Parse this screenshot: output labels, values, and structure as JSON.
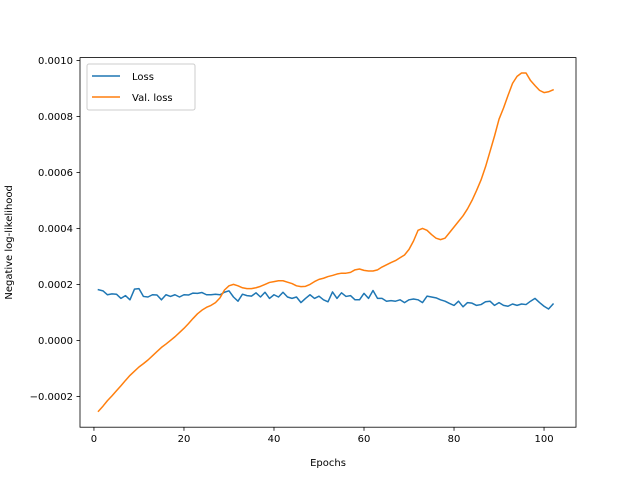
{
  "chart_data": {
    "type": "line",
    "title": "",
    "xlabel": "Epochs",
    "ylabel": "Negative log-likelihood",
    "xlim": [
      -3.1,
      107.1
    ],
    "ylim": [
      -0.00031,
      0.00101
    ],
    "x_ticks": [
      0,
      20,
      40,
      60,
      80,
      100
    ],
    "x_tick_labels": [
      "0",
      "20",
      "40",
      "60",
      "80",
      "100"
    ],
    "y_ticks": [
      -0.0002,
      0.0,
      0.0002,
      0.0004,
      0.0006,
      0.0008,
      0.001
    ],
    "y_tick_labels": [
      "−0.0002",
      "0.0000",
      "0.0002",
      "0.0004",
      "0.0006",
      "0.0008",
      "0.0010"
    ],
    "grid": false,
    "legend_position": "upper-left",
    "x": [
      1,
      2,
      3,
      4,
      5,
      6,
      7,
      8,
      9,
      10,
      11,
      12,
      13,
      14,
      15,
      16,
      17,
      18,
      19,
      20,
      21,
      22,
      23,
      24,
      25,
      26,
      27,
      28,
      29,
      30,
      31,
      32,
      33,
      34,
      35,
      36,
      37,
      38,
      39,
      40,
      41,
      42,
      43,
      44,
      45,
      46,
      47,
      48,
      49,
      50,
      51,
      52,
      53,
      54,
      55,
      56,
      57,
      58,
      59,
      60,
      61,
      62,
      63,
      64,
      65,
      66,
      67,
      68,
      69,
      70,
      71,
      72,
      73,
      74,
      75,
      76,
      77,
      78,
      79,
      80,
      81,
      82,
      83,
      84,
      85,
      86,
      87,
      88,
      89,
      90,
      91,
      92,
      93,
      94,
      95,
      96,
      97,
      98,
      99,
      100,
      101,
      102
    ],
    "series": [
      {
        "name": "Loss",
        "color": "#1f77b4",
        "values": [
          0.000181,
          0.000177,
          0.000163,
          0.000166,
          0.000165,
          0.00015,
          0.00016,
          0.000145,
          0.000183,
          0.000185,
          0.000157,
          0.000155,
          0.000163,
          0.000162,
          0.000145,
          0.000163,
          0.000157,
          0.000163,
          0.000155,
          0.000163,
          0.000162,
          0.000169,
          0.000168,
          0.000171,
          0.000163,
          0.000163,
          0.000165,
          0.000163,
          0.000172,
          0.000177,
          0.000155,
          0.00014,
          0.000165,
          0.00016,
          0.000158,
          0.00017,
          0.000155,
          0.000172,
          0.00015,
          0.000163,
          0.000155,
          0.000172,
          0.000155,
          0.00015,
          0.000155,
          0.000135,
          0.00015,
          0.000163,
          0.00015,
          0.000158,
          0.000145,
          0.000138,
          0.000173,
          0.00015,
          0.00017,
          0.000157,
          0.00016,
          0.000145,
          0.000145,
          0.000168,
          0.00015,
          0.000178,
          0.00015,
          0.00015,
          0.00014,
          0.000142,
          0.00014,
          0.000145,
          0.000135,
          0.000145,
          0.000148,
          0.000145,
          0.000135,
          0.000158,
          0.000155,
          0.000152,
          0.000145,
          0.00014,
          0.000132,
          0.000125,
          0.00014,
          0.00012,
          0.000135,
          0.000133,
          0.000125,
          0.000128,
          0.000138,
          0.00014,
          0.000125,
          0.000135,
          0.000125,
          0.000122,
          0.00013,
          0.000125,
          0.00013,
          0.000128,
          0.00014,
          0.00015,
          0.000135,
          0.000122,
          0.000112,
          0.00013
        ]
      },
      {
        "name": "Val. loss",
        "color": "#ff7f0e",
        "values": [
          -0.000253,
          -0.000235,
          -0.000215,
          -0.000198,
          -0.00018,
          -0.000162,
          -0.000143,
          -0.000125,
          -0.00011,
          -9.5e-05,
          -8.3e-05,
          -7e-05,
          -5.5e-05,
          -4e-05,
          -2.5e-05,
          -1.3e-05,
          0.0,
          1.3e-05,
          2.8e-05,
          4.3e-05,
          6e-05,
          7.8e-05,
          9.5e-05,
          0.000108,
          0.000118,
          0.000125,
          0.000135,
          0.000152,
          0.00018,
          0.000195,
          0.0002,
          0.000195,
          0.000188,
          0.000185,
          0.000185,
          0.000188,
          0.000193,
          0.0002,
          0.000207,
          0.00021,
          0.000213,
          0.000213,
          0.000208,
          0.000203,
          0.000195,
          0.000192,
          0.000193,
          0.0002,
          0.00021,
          0.000218,
          0.000222,
          0.000228,
          0.000232,
          0.000237,
          0.00024,
          0.00024,
          0.000243,
          0.000252,
          0.000255,
          0.00025,
          0.000248,
          0.000248,
          0.000252,
          0.000262,
          0.00027,
          0.000278,
          0.000285,
          0.000295,
          0.000305,
          0.000325,
          0.000355,
          0.000393,
          0.0004,
          0.000393,
          0.000378,
          0.000365,
          0.00036,
          0.000365,
          0.000385,
          0.000405,
          0.000425,
          0.000445,
          0.00047,
          0.0005,
          0.000535,
          0.000573,
          0.00062,
          0.000675,
          0.00073,
          0.00079,
          0.00083,
          0.000875,
          0.000918,
          0.000943,
          0.000955,
          0.000955,
          0.000928,
          0.00091,
          0.000893,
          0.000885,
          0.000888,
          0.000895
        ]
      }
    ]
  }
}
